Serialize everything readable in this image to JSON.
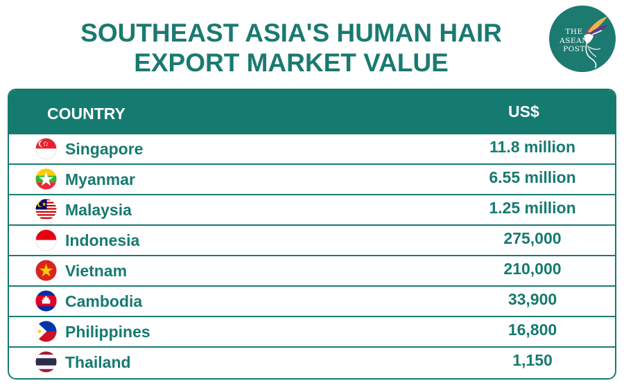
{
  "title_line1": "SOUTHEAST ASIA'S HUMAN HAIR",
  "title_line2": "EXPORT MARKET VALUE",
  "logo": {
    "line1": "THE",
    "line2": "ASEAN",
    "line3": "POST",
    "icon": "hummingbird-icon"
  },
  "colors": {
    "teal": "#157a70",
    "white": "#ffffff"
  },
  "chart_data": {
    "type": "table",
    "columns": [
      "COUNTRY",
      "US$"
    ],
    "rows": [
      {
        "country": "Singapore",
        "value": "11.8 million",
        "flag": "singapore-flag-icon"
      },
      {
        "country": "Myanmar",
        "value": "6.55 million",
        "flag": "myanmar-flag-icon"
      },
      {
        "country": "Malaysia",
        "value": "1.25 million",
        "flag": "malaysia-flag-icon"
      },
      {
        "country": "Indonesia",
        "value": "275,000",
        "flag": "indonesia-flag-icon"
      },
      {
        "country": "Vietnam",
        "value": "210,000",
        "flag": "vietnam-flag-icon"
      },
      {
        "country": "Cambodia",
        "value": "33,900",
        "flag": "cambodia-flag-icon"
      },
      {
        "country": "Philippines",
        "value": "16,800",
        "flag": "philippines-flag-icon"
      },
      {
        "country": "Thailand",
        "value": "1,150",
        "flag": "thailand-flag-icon"
      }
    ]
  }
}
